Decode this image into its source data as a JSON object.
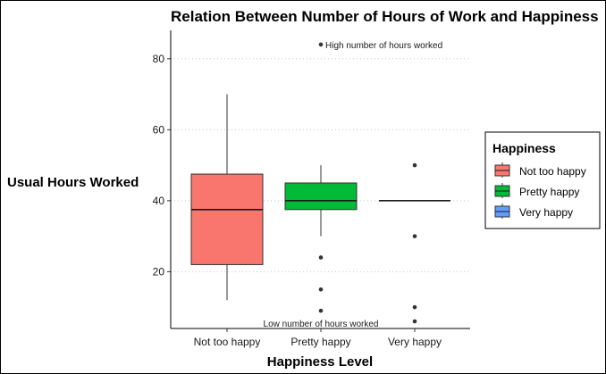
{
  "chart_data": {
    "type": "boxplot",
    "title": "Relation Between Number of Hours of Work and Happiness",
    "xlabel": "Happiness Level",
    "ylabel": "Usual Hours Worked",
    "ylim": [
      4,
      88
    ],
    "yticks": [
      20,
      40,
      60,
      80
    ],
    "grid": "horizontal-dotted",
    "categories": [
      "Not too happy",
      "Pretty happy",
      "Very happy"
    ],
    "boxes": [
      {
        "category": "Not too happy",
        "min": 12,
        "q1": 22,
        "median": 37.5,
        "q3": 47.5,
        "max": 70,
        "outliers": [],
        "color": "#F8766D"
      },
      {
        "category": "Pretty happy",
        "min": 30,
        "q1": 37.5,
        "median": 40,
        "q3": 45,
        "max": 50,
        "outliers": [
          84,
          24,
          15,
          9
        ],
        "color": "#00BA38"
      },
      {
        "category": "Very happy",
        "min": 40,
        "q1": 40,
        "median": 40,
        "q3": 40,
        "max": 40,
        "outliers": [
          50,
          30,
          10,
          6
        ],
        "color": "#619CFF"
      }
    ],
    "annotations": [
      {
        "text": "High number of hours worked",
        "x": "Pretty happy",
        "y": 84
      },
      {
        "text": "Low number of hours worked",
        "x": "Pretty happy",
        "y": 4
      }
    ],
    "legend": {
      "title": "Happiness",
      "position": "right",
      "entries": [
        {
          "label": "Not too happy",
          "color": "#F8766D"
        },
        {
          "label": "Pretty happy",
          "color": "#00BA38"
        },
        {
          "label": "Very happy",
          "color": "#619CFF"
        }
      ]
    }
  }
}
